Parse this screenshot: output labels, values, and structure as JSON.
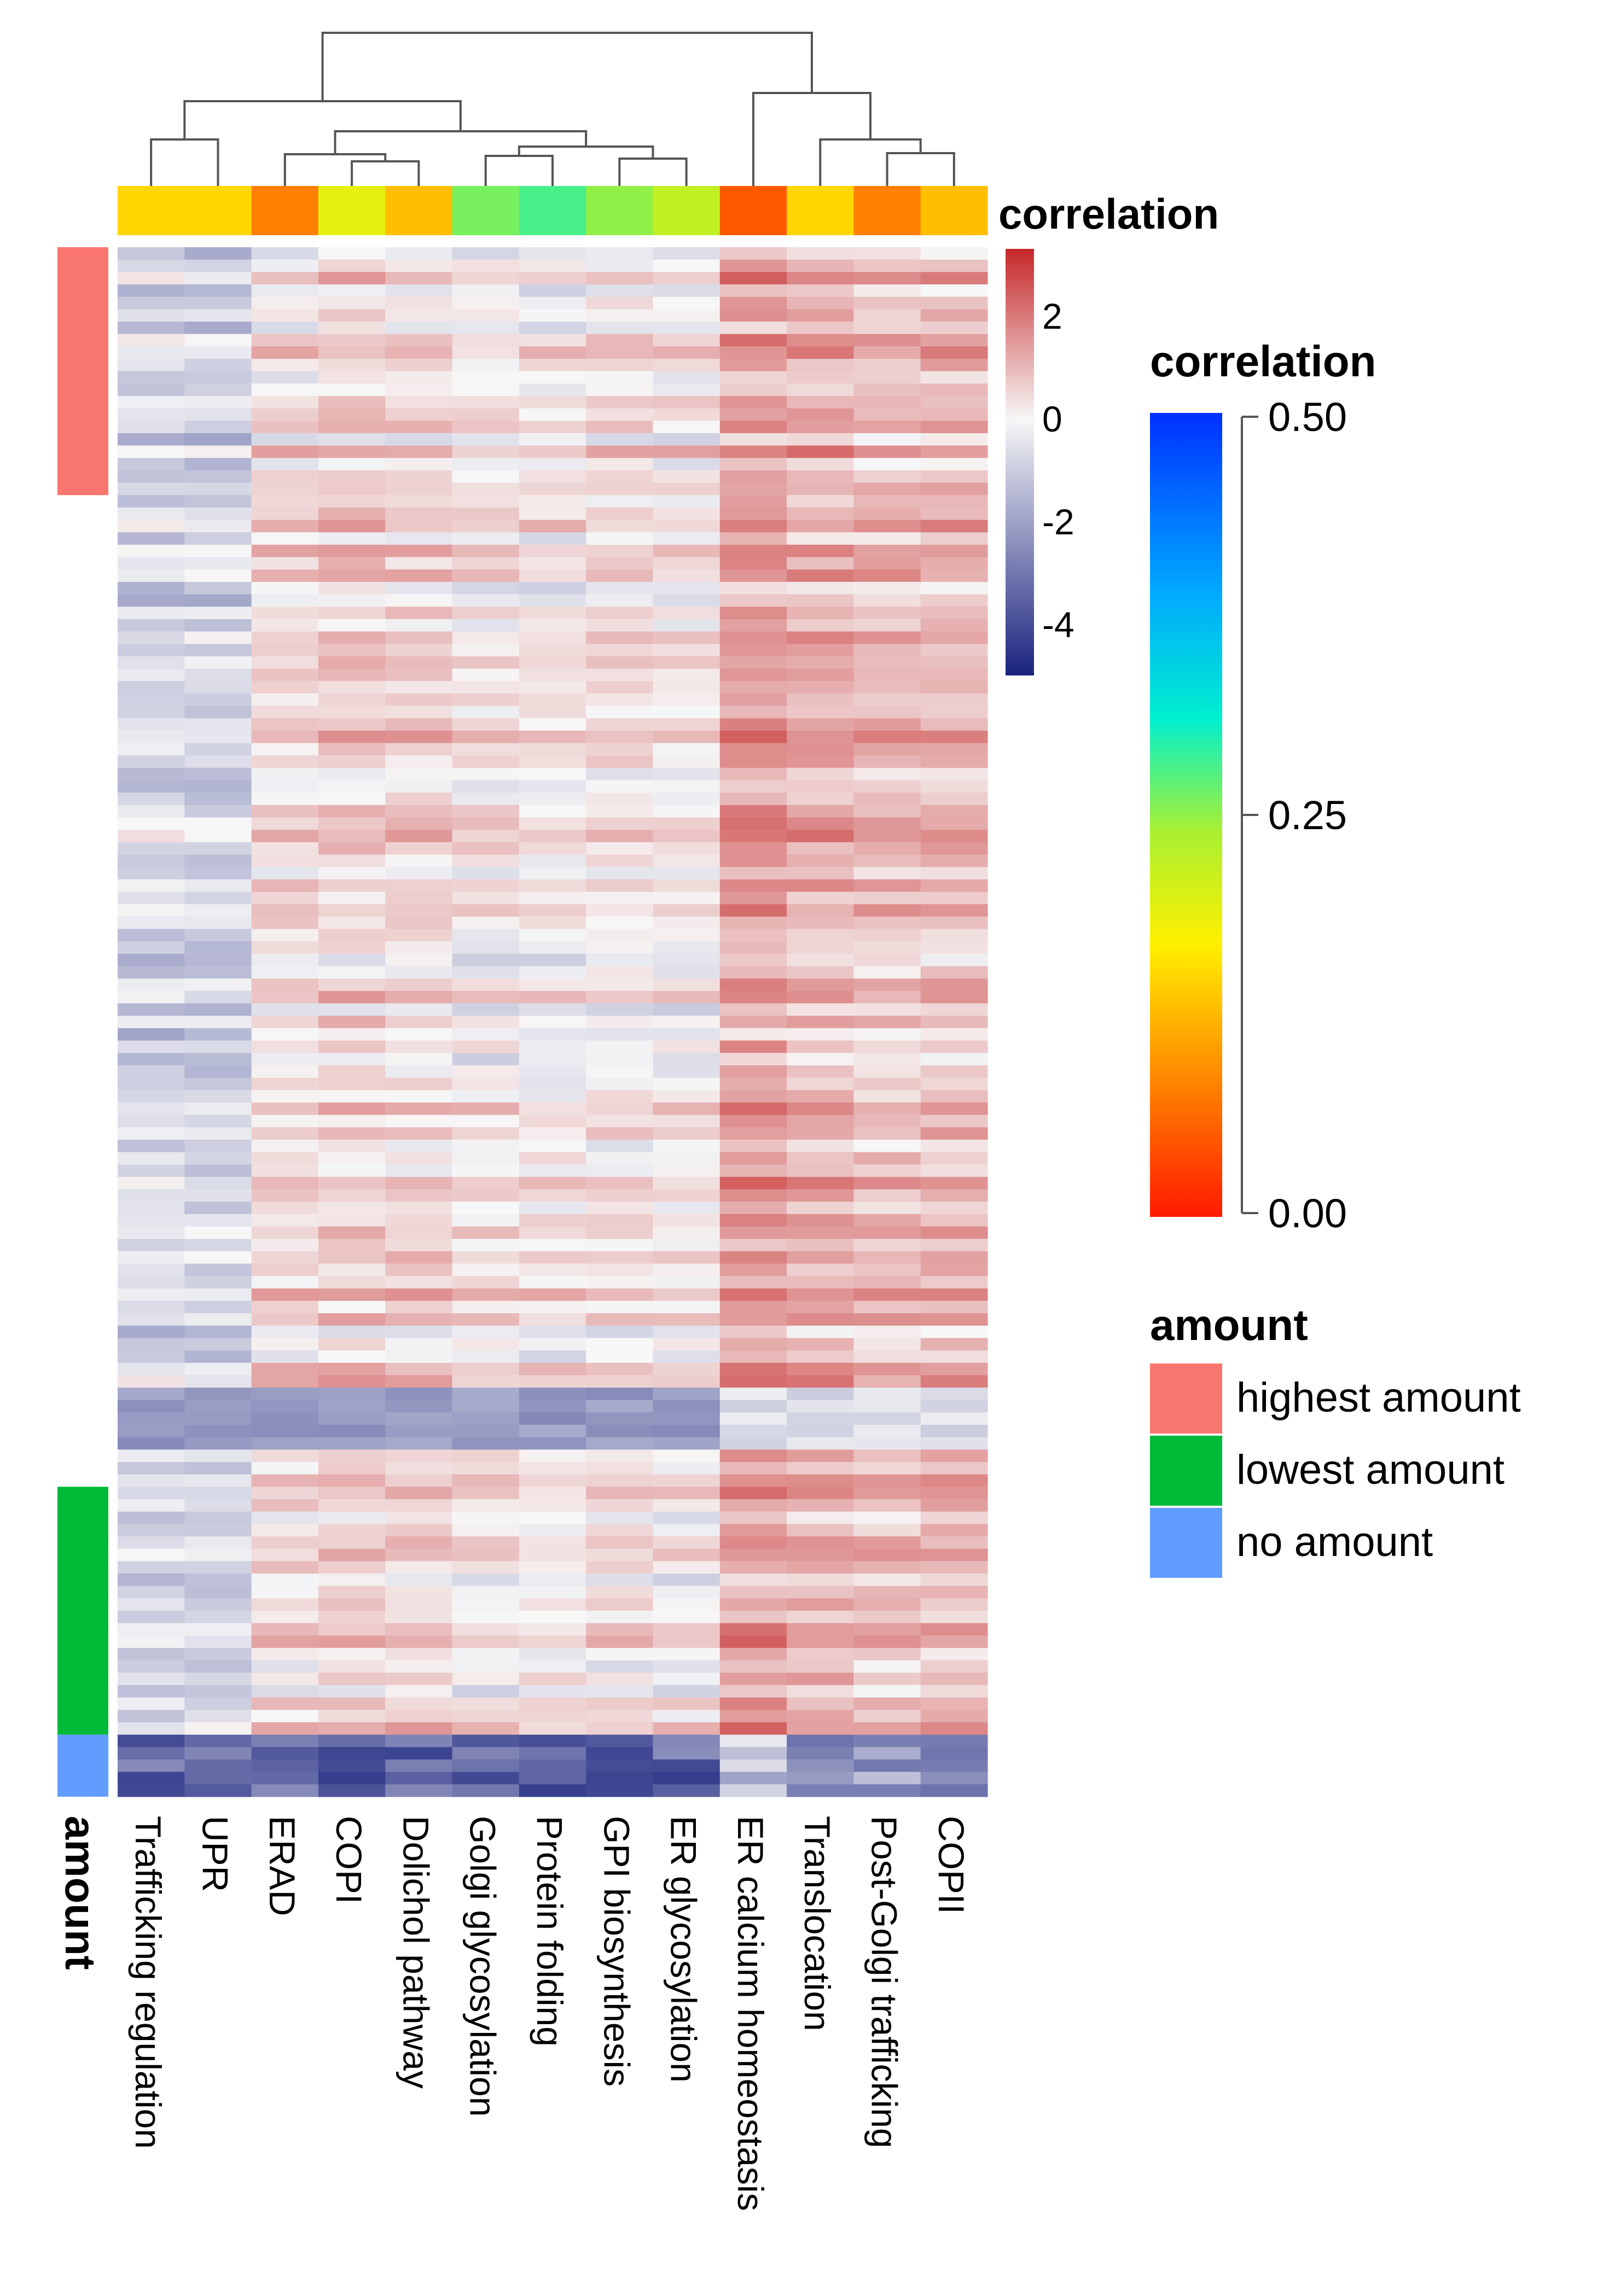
{
  "chart_data": {
    "type": "heatmap",
    "columns": [
      "Trafficking regulation",
      "UPR",
      "ERAD",
      "COPI",
      "Dolichol pathway",
      "Golgi glycosylation",
      "Protein folding",
      "GPI biosynthesis",
      "ER glycosylation",
      "ER calcium homeostasis",
      "Translocation",
      "Post-Golgi trafficking",
      "COPII"
    ],
    "column_correlation": [
      0.15,
      0.15,
      0.08,
      0.19,
      0.13,
      0.26,
      0.28,
      0.25,
      0.22,
      0.05,
      0.15,
      0.08,
      0.13
    ],
    "row_amount": [
      "highest amount",
      "highest amount",
      "highest amount",
      "highest amount",
      "highest amount",
      "highest amount",
      "highest amount",
      "highest amount",
      "highest amount",
      "highest amount",
      "highest amount",
      "highest amount",
      "highest amount",
      "highest amount",
      "highest amount",
      "highest amount",
      "highest amount",
      "highest amount",
      "highest amount",
      "highest amount",
      "",
      "",
      "",
      "",
      "",
      "",
      "",
      "",
      "",
      "",
      "",
      "",
      "",
      "",
      "",
      "",
      "",
      "",
      "",
      "",
      "",
      "",
      "",
      "",
      "",
      "",
      "",
      "",
      "",
      "",
      "",
      "",
      "",
      "",
      "",
      "",
      "",
      "",
      "",
      "",
      "",
      "",
      "",
      "",
      "",
      "",
      "",
      "",
      "",
      "",
      "",
      "",
      "",
      "",
      "",
      "",
      "",
      "",
      "",
      "",
      "",
      "",
      "",
      "",
      "",
      "",
      "",
      "",
      "",
      "",
      "",
      "",
      "",
      "",
      "",
      "",
      "",
      "",
      "",
      "",
      "lowest amount",
      "lowest amount",
      "lowest amount",
      "lowest amount",
      "lowest amount",
      "lowest amount",
      "lowest amount",
      "lowest amount",
      "lowest amount",
      "lowest amount",
      "lowest amount",
      "lowest amount",
      "lowest amount",
      "lowest amount",
      "lowest amount",
      "lowest amount",
      "lowest amount",
      "lowest amount",
      "lowest amount",
      "lowest amount",
      "no amount",
      "no amount",
      "no amount",
      "no amount",
      "no amount"
    ],
    "value_legend": {
      "title": "",
      "ticks": [
        "2",
        "0",
        "-2",
        "-4"
      ],
      "range": [
        -5,
        3.3
      ],
      "low_color": "#1a237e",
      "mid_color": "#f7f7f7",
      "high_color": "#c62828"
    },
    "correlation_legend": {
      "title": "correlation",
      "ticks": [
        "0.50",
        "0.25",
        "0.00"
      ],
      "range": [
        0,
        0.5
      ]
    },
    "amount_legend": {
      "title": "amount",
      "items": [
        {
          "label": "highest amount",
          "color": "#f8766d"
        },
        {
          "label": "lowest amount",
          "color": "#00ba38"
        },
        {
          "label": "no amount",
          "color": "#619cff"
        }
      ]
    },
    "annotation_labels": {
      "column_track": "correlation",
      "row_track": "amount"
    },
    "column_dendrogram": true
  }
}
